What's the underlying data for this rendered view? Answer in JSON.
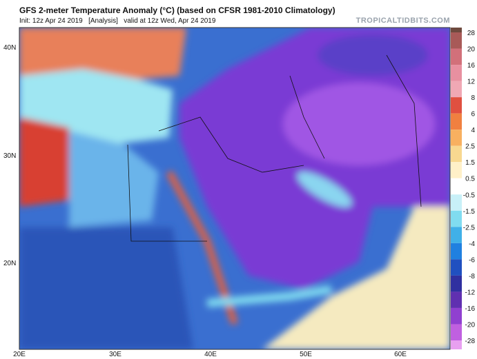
{
  "header": {
    "title": "GFS 2-meter Temperature Anomaly (°C) (based on CFSR 1981-2010 Climatology)",
    "subtitle": "Init: 12z Apr 24 2019   [Analysis]   valid at 12z Wed, Apr 24 2019",
    "watermark": "TROPICALTIDBITS.COM"
  },
  "map": {
    "lat_labels": [
      "40N",
      "30N",
      "20N"
    ],
    "lon_labels": [
      "20E",
      "30E",
      "40E",
      "50E",
      "60E"
    ]
  },
  "colorbar": {
    "ticks": [
      28,
      20,
      16,
      12,
      8,
      6,
      4,
      2.5,
      1.5,
      0.5,
      -0.5,
      -1.5,
      -2.5,
      -4,
      -6,
      -8,
      -12,
      -16,
      -20,
      -28
    ],
    "colors": [
      "#6e4a3e",
      "#a85a58",
      "#d2707a",
      "#e890a0",
      "#f0a8b4",
      "#e05040",
      "#f08040",
      "#f8b060",
      "#f8d890",
      "#fff0c8",
      "#ffffff",
      "#c8f0f8",
      "#80dcf0",
      "#40b0e8",
      "#2080e0",
      "#2050c0",
      "#3030a0",
      "#6030b0",
      "#9040d0",
      "#c060e0",
      "#e8a0f0"
    ]
  }
}
